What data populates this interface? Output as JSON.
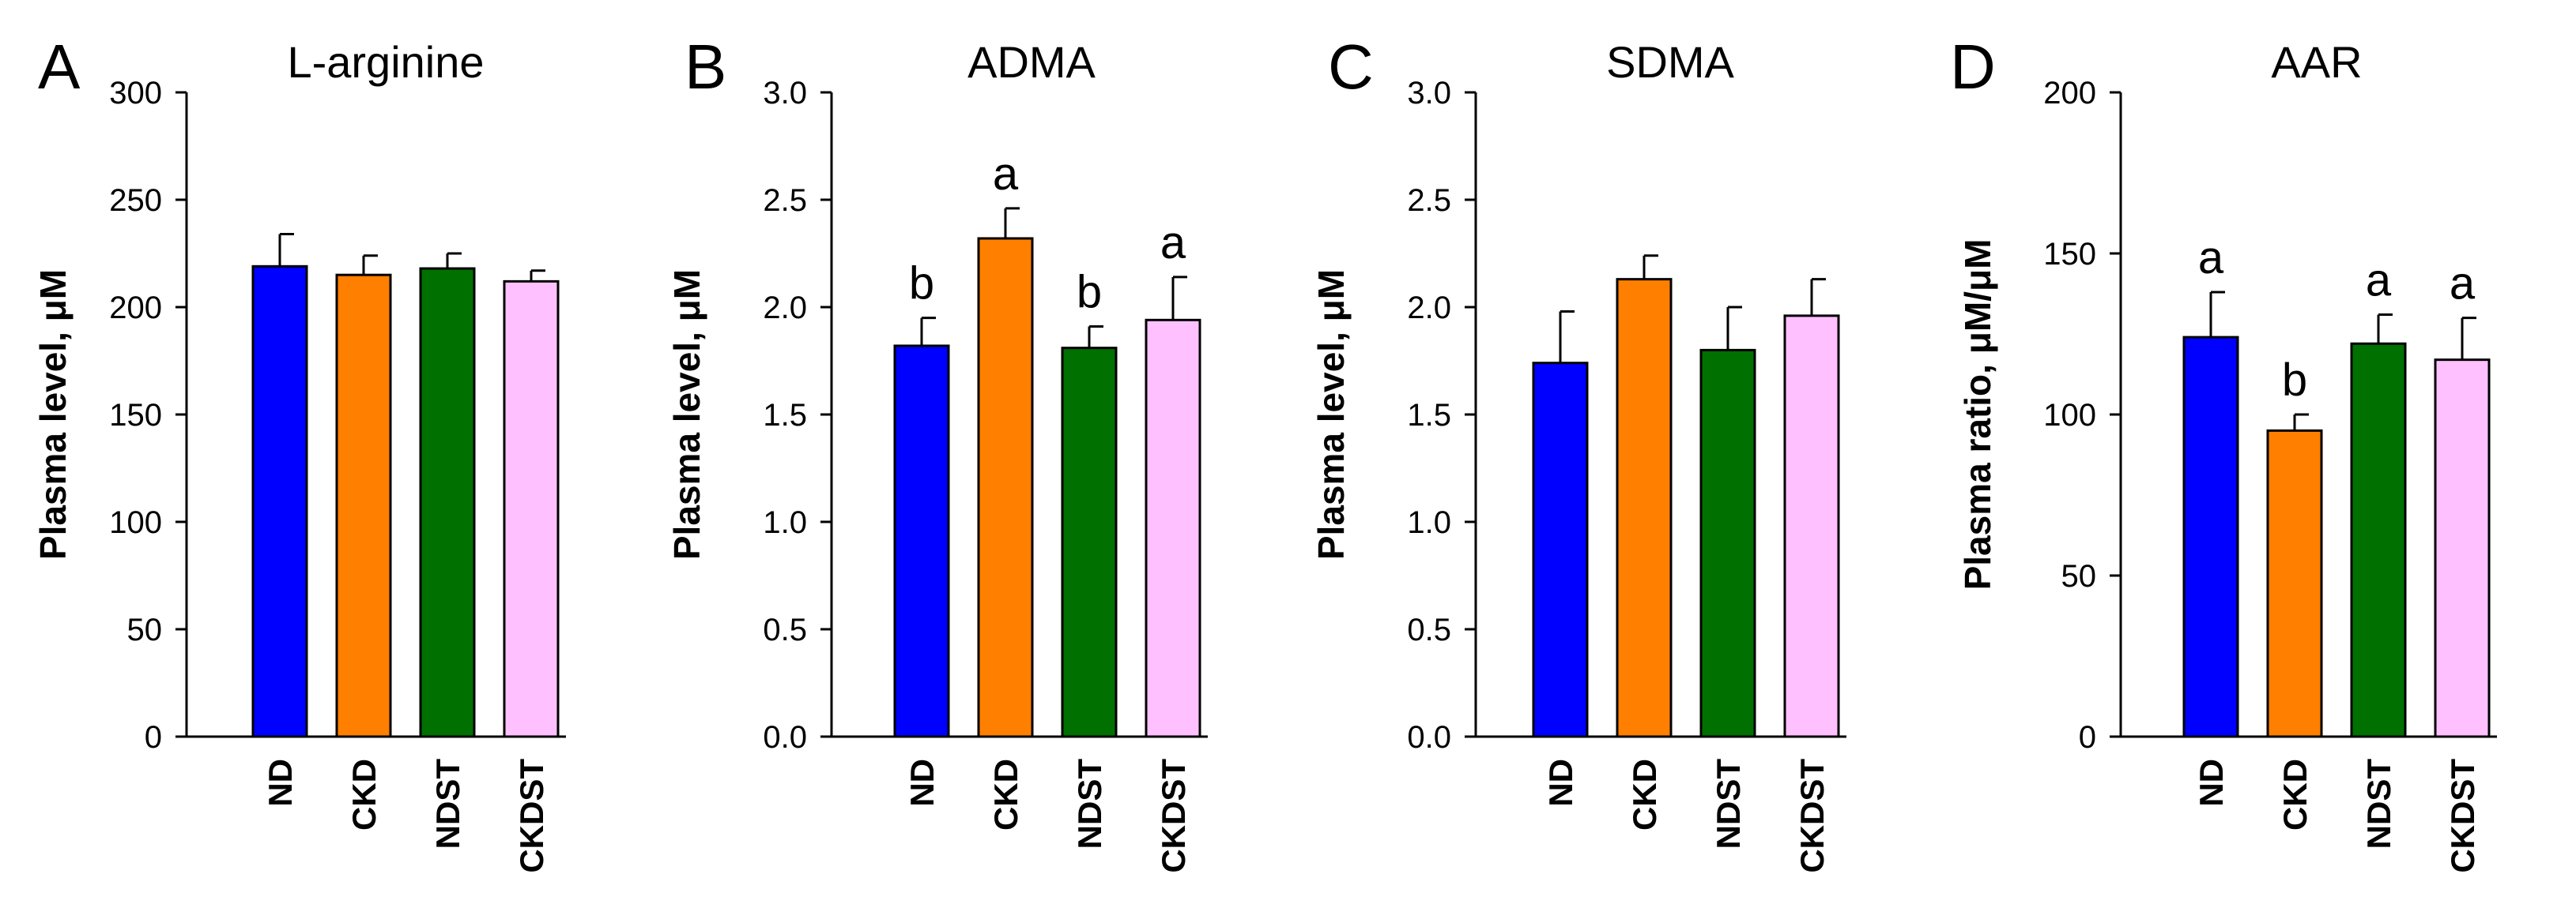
{
  "figure": {
    "background": "#ffffff"
  },
  "group_colors": [
    "#0000ff",
    "#ff7f00",
    "#007000",
    "#ffc0ff"
  ],
  "chart_data": [
    {
      "type": "bar",
      "panel": "A",
      "title": "L-arginine",
      "ylabel": "Plasma level, μM",
      "ylim": [
        0,
        300
      ],
      "yticks": [
        0,
        50,
        100,
        150,
        200,
        250,
        300
      ],
      "ytick_labels": [
        "0",
        "50",
        "100",
        "150",
        "200",
        "250",
        "300"
      ],
      "categories": [
        "ND",
        "CKD",
        "NDST",
        "CKDST"
      ],
      "values": [
        219,
        215,
        218,
        212
      ],
      "errors": [
        15,
        9,
        7,
        5
      ],
      "significance": [
        "",
        "",
        "",
        ""
      ]
    },
    {
      "type": "bar",
      "panel": "B",
      "title": "ADMA",
      "ylabel": "Plasma level, μM",
      "ylim": [
        0,
        3.0
      ],
      "yticks": [
        0,
        0.5,
        1.0,
        1.5,
        2.0,
        2.5,
        3.0
      ],
      "ytick_labels": [
        "0.0",
        "0.5",
        "1.0",
        "1.5",
        "2.0",
        "2.5",
        "3.0"
      ],
      "categories": [
        "ND",
        "CKD",
        "NDST",
        "CKDST"
      ],
      "values": [
        1.82,
        2.32,
        1.81,
        1.94
      ],
      "errors": [
        0.13,
        0.14,
        0.1,
        0.2
      ],
      "significance": [
        "b",
        "a",
        "b",
        "a"
      ]
    },
    {
      "type": "bar",
      "panel": "C",
      "title": "SDMA",
      "ylabel": "Plasma level, μM",
      "ylim": [
        0,
        3.0
      ],
      "yticks": [
        0,
        0.5,
        1.0,
        1.5,
        2.0,
        2.5,
        3.0
      ],
      "ytick_labels": [
        "0.0",
        "0.5",
        "1.0",
        "1.5",
        "2.0",
        "2.5",
        "3.0"
      ],
      "categories": [
        "ND",
        "CKD",
        "NDST",
        "CKDST"
      ],
      "values": [
        1.74,
        2.13,
        1.8,
        1.96
      ],
      "errors": [
        0.24,
        0.11,
        0.2,
        0.17
      ],
      "significance": [
        "",
        "",
        "",
        ""
      ]
    },
    {
      "type": "bar",
      "panel": "D",
      "title": "AAR",
      "ylabel": "Plasma ratio, μM/μM",
      "ylim": [
        0,
        200
      ],
      "yticks": [
        0,
        50,
        100,
        150,
        200
      ],
      "ytick_labels": [
        "0",
        "50",
        "100",
        "150",
        "200"
      ],
      "categories": [
        "ND",
        "CKD",
        "NDST",
        "CKDST"
      ],
      "values": [
        124,
        95,
        122,
        117
      ],
      "errors": [
        14,
        5,
        9,
        13
      ],
      "significance": [
        "a",
        "b",
        "a",
        "a"
      ]
    }
  ]
}
